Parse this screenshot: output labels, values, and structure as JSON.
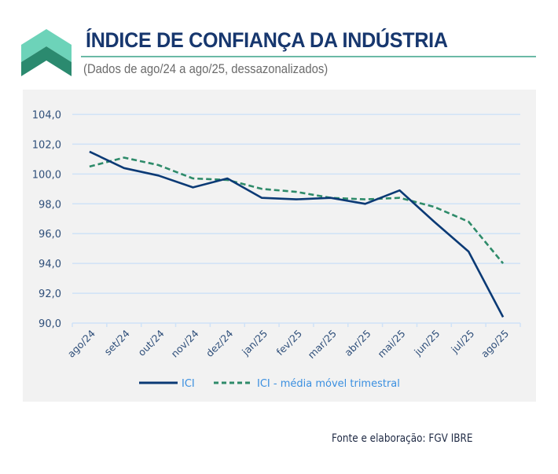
{
  "header": {
    "title": "ÍNDICE DE CONFIANÇA DA INDÚSTRIA",
    "subtitle": "(Dados de ago/24 a ago/25, dessazonalizados)",
    "logo_icon": "double-chevron-up-icon"
  },
  "colors": {
    "title": "#17376e",
    "logo_light": "#6dd3b9",
    "logo_dark": "#2b8a6f",
    "ici_line": "#0b3a75",
    "ma_line": "#2e8b6a",
    "gridline": "#cfe2f7",
    "panel_bg": "#f2f2f2",
    "legend_text": "#3a8fe0"
  },
  "chart_data": {
    "type": "line",
    "title": "ÍNDICE DE CONFIANÇA DA INDÚSTRIA",
    "subtitle": "(Dados de ago/24 a ago/25, dessazonalizados)",
    "xlabel": "",
    "ylabel": "",
    "categories": [
      "ago/24",
      "set/24",
      "out/24",
      "nov/24",
      "dez/24",
      "jan/25",
      "fev/25",
      "mar/25",
      "abr/25",
      "mai/25",
      "jun/25",
      "jul/25",
      "ago/25"
    ],
    "ylim": [
      90.0,
      104.0
    ],
    "yticks": [
      "90,0",
      "92,0",
      "94,0",
      "96,0",
      "98,0",
      "100,0",
      "102,0",
      "104,0"
    ],
    "ytick_values": [
      90,
      92,
      94,
      96,
      98,
      100,
      102,
      104
    ],
    "grid": true,
    "legend_position": "bottom",
    "series": [
      {
        "name": "ICI",
        "style": "solid",
        "values": [
          101.5,
          100.4,
          99.9,
          99.1,
          99.7,
          98.4,
          98.3,
          98.4,
          98.0,
          98.9,
          96.8,
          94.8,
          90.4
        ]
      },
      {
        "name": "ICI - média móvel trimestral",
        "style": "dashed",
        "values": [
          100.5,
          101.1,
          100.6,
          99.7,
          99.6,
          99.0,
          98.8,
          98.4,
          98.3,
          98.4,
          97.8,
          96.8,
          94.0
        ]
      }
    ]
  },
  "footer": {
    "source": "Fonte e elaboração: FGV IBRE"
  }
}
